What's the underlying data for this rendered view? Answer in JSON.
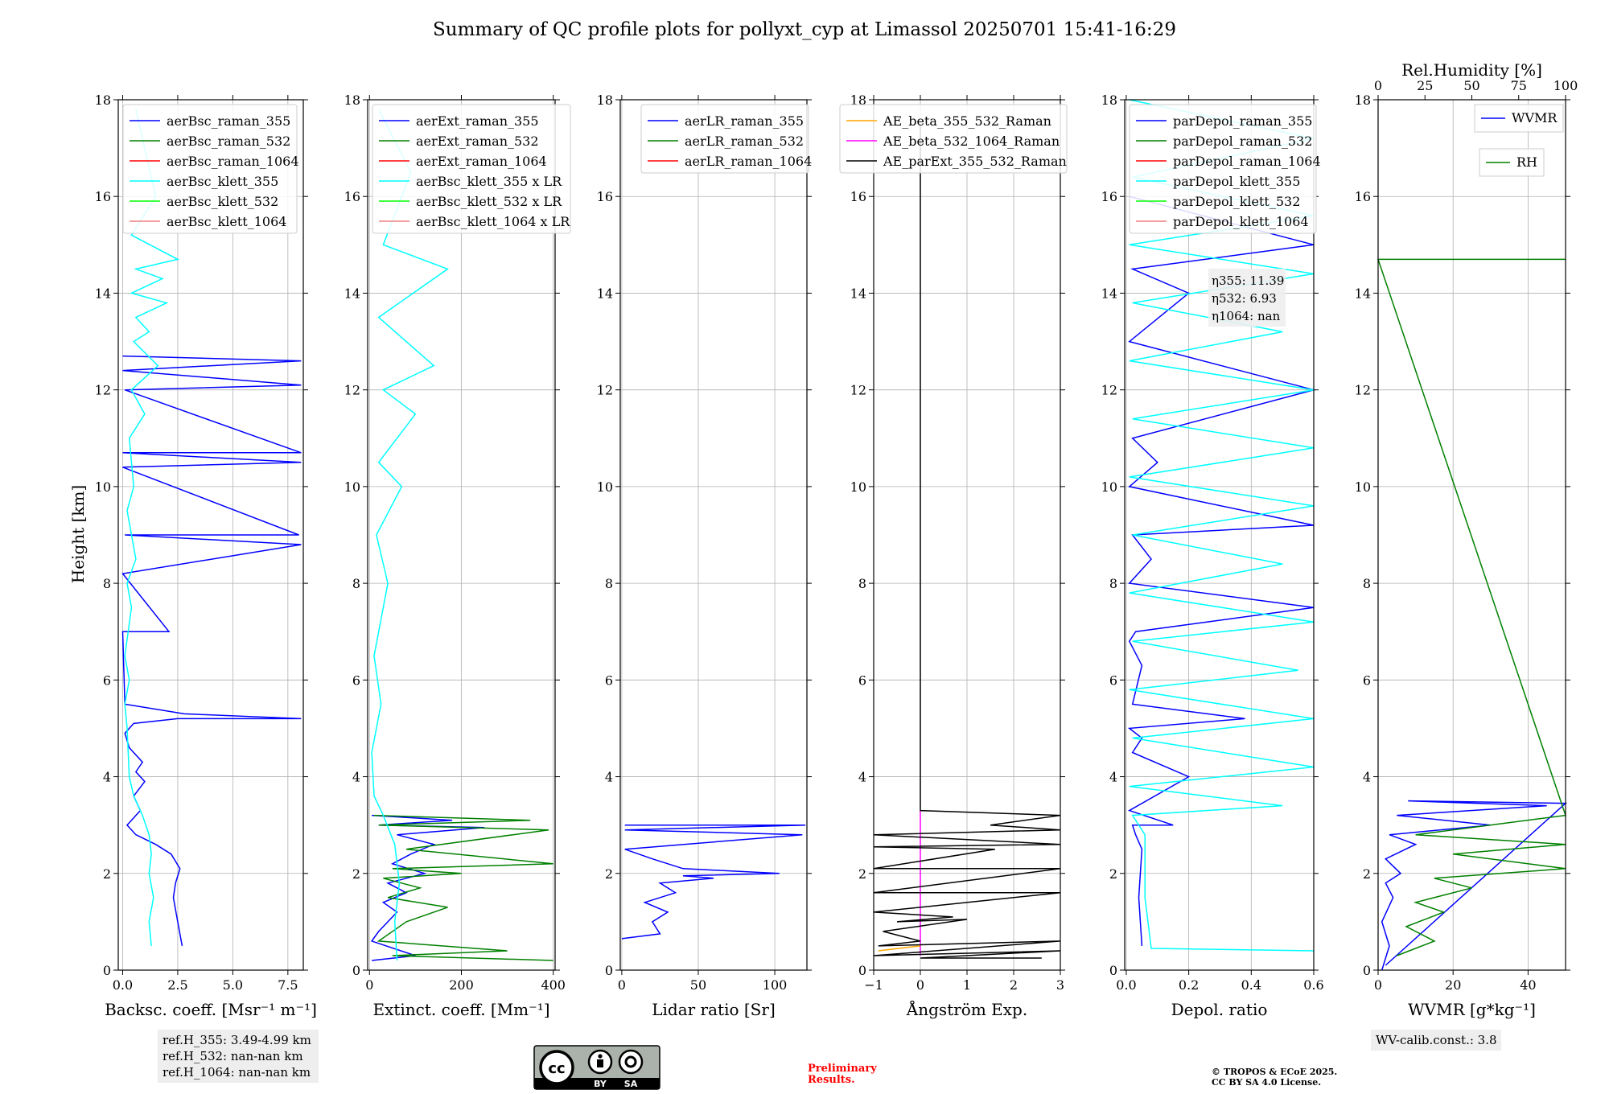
{
  "figure": {
    "title": "Summary of QC profile plots for pollyxt_cyp at Limassol 20250701 15:41-16:29",
    "ylabel": "Height [km]",
    "ref_heights": [
      "ref.H_355: 3.49-4.99 km",
      "ref.H_532: nan-nan km",
      "ref.H_1064: nan-nan km"
    ],
    "wv_calib": "WV-calib.const.: 3.8",
    "preliminary": [
      "Preliminary",
      "Results."
    ],
    "copyright": [
      "© TROPOS & ECoE 2025.",
      "CC BY SA 4.0 License."
    ],
    "license_badge": [
      "BY",
      "SA"
    ],
    "eta_labels": [
      "η355: 11.39",
      "η532: 6.93",
      "η1064: nan"
    ],
    "colors": {
      "raman_355": "#0000ff",
      "raman_532": "#008000",
      "raman_1064": "#ff0000",
      "klett_355": "#00ffff",
      "klett_532": "#00ff00",
      "klett_1064": "#f08080",
      "ae_355_532": "#ffa500",
      "ae_532_1064": "#ff00ff",
      "ae_ext": "#000000"
    }
  },
  "chart_data": [
    {
      "type": "line",
      "xlabel": "Backsc. coeff. [Msr⁻¹ m⁻¹]",
      "xlim": [
        -0.2,
        8.2
      ],
      "ylim": [
        0,
        18
      ],
      "xticks": [
        0.0,
        2.5,
        5.0,
        7.5
      ],
      "xtick_labels": [
        "0.0",
        "2.5",
        "5.0",
        "7.5"
      ],
      "legend": [
        "aerBsc_raman_355",
        "aerBsc_raman_532",
        "aerBsc_raman_1064",
        "aerBsc_klett_355",
        "aerBsc_klett_532",
        "aerBsc_klett_1064"
      ],
      "legend_colors": [
        "#0000ff",
        "#008000",
        "#ff0000",
        "#00ffff",
        "#00ff00",
        "#f08080"
      ],
      "series": [
        {
          "color": "#0000ff",
          "x": [
            2.7,
            2.5,
            2.3,
            2.4,
            2.6,
            2.2,
            1.5,
            0.6,
            0.2,
            0.8,
            0.5,
            1.0,
            0.6,
            0.9,
            0.3,
            0.1,
            0.5,
            2.5,
            8.1,
            2.8,
            0.1,
            0.0,
            2.1,
            0.0,
            8.1,
            0.1,
            8.0,
            0.0,
            8.1,
            0.0,
            8.1,
            0.1,
            8.1,
            0.0,
            8.1,
            0.0
          ],
          "y": [
            0.5,
            1.0,
            1.5,
            1.8,
            2.1,
            2.4,
            2.6,
            2.8,
            3.0,
            3.3,
            3.6,
            3.9,
            4.1,
            4.3,
            4.6,
            4.9,
            5.1,
            5.2,
            5.2,
            5.3,
            5.5,
            7.0,
            7.0,
            8.2,
            8.8,
            9.0,
            9.0,
            10.4,
            10.5,
            10.7,
            10.7,
            12.0,
            12.1,
            12.4,
            12.6,
            12.7
          ]
        },
        {
          "color": "#00ffff",
          "x": [
            1.3,
            1.2,
            1.4,
            1.2,
            1.3,
            1.2,
            0.9,
            0.5,
            0.3,
            0.2,
            0.1,
            0.3,
            0.1,
            0.4,
            0.2,
            0.6,
            0.2,
            0.5,
            0.3,
            1.0,
            0.4,
            1.6,
            0.5,
            1.2,
            0.6,
            2.0,
            0.4,
            1.8,
            0.6,
            2.5,
            0.4,
            1.5,
            0.6
          ],
          "y": [
            0.5,
            1.0,
            1.5,
            2.0,
            2.4,
            2.8,
            3.2,
            3.6,
            4.0,
            5.0,
            5.5,
            6.0,
            6.5,
            7.5,
            8.0,
            8.5,
            9.5,
            10.0,
            11.0,
            11.5,
            12.0,
            12.5,
            13.0,
            13.2,
            13.5,
            13.8,
            14.0,
            14.3,
            14.5,
            14.7,
            15.2,
            16.0,
            17.8
          ]
        }
      ]
    },
    {
      "type": "line",
      "xlabel": "Extinct. coeff. [Mm⁻¹]",
      "xlim": [
        -4,
        404
      ],
      "ylim": [
        0,
        18
      ],
      "xticks": [
        0,
        200,
        400
      ],
      "xtick_labels": [
        "0",
        "200",
        "400"
      ],
      "legend": [
        "aerExt_raman_355",
        "aerExt_raman_532",
        "aerExt_raman_1064",
        "aerBsc_klett_355 x LR",
        "aerBsc_klett_532 x LR",
        "aerBsc_klett_1064 x LR"
      ],
      "legend_colors": [
        "#0000ff",
        "#008000",
        "#ff0000",
        "#00ffff",
        "#00ff00",
        "#f08080"
      ],
      "series": [
        {
          "color": "#0000ff",
          "x": [
            5,
            100,
            5,
            20,
            40,
            60,
            30,
            80,
            40,
            120,
            50,
            90,
            140,
            60,
            250,
            20,
            180,
            5
          ],
          "y": [
            0.2,
            0.3,
            0.6,
            0.8,
            1.0,
            1.2,
            1.4,
            1.6,
            1.8,
            2.0,
            2.2,
            2.4,
            2.6,
            2.8,
            2.95,
            3.0,
            3.1,
            3.2
          ]
        },
        {
          "color": "#008000",
          "x": [
            400,
            50,
            300,
            20,
            80,
            170,
            40,
            110,
            30,
            200,
            50,
            400,
            80,
            390,
            20,
            350,
            10
          ],
          "y": [
            0.2,
            0.3,
            0.4,
            0.6,
            1.0,
            1.3,
            1.5,
            1.7,
            1.9,
            2.0,
            2.1,
            2.2,
            2.5,
            2.9,
            3.0,
            3.1,
            3.2
          ]
        },
        {
          "color": "#00ffff",
          "x": [
            60,
            55,
            65,
            55,
            30,
            10,
            5,
            25,
            10,
            40,
            15,
            70,
            20,
            100,
            30,
            140,
            20,
            170,
            30,
            90,
            20
          ],
          "y": [
            0.2,
            1.0,
            1.8,
            2.6,
            3.2,
            3.6,
            4.5,
            5.5,
            6.5,
            8.0,
            9.0,
            10.0,
            10.5,
            11.5,
            12.0,
            12.5,
            13.5,
            14.5,
            15.0,
            16.5,
            17.8
          ]
        }
      ]
    },
    {
      "type": "line",
      "xlabel": "Lidar ratio [Sr]",
      "xlim": [
        -1,
        121
      ],
      "ylim": [
        0,
        18
      ],
      "xticks": [
        0,
        50,
        100
      ],
      "xtick_labels": [
        "0",
        "50",
        "100"
      ],
      "legend": [
        "aerLR_raman_355",
        "aerLR_raman_532",
        "aerLR_raman_1064"
      ],
      "legend_colors": [
        "#0000ff",
        "#008000",
        "#ff0000"
      ],
      "series": [
        {
          "color": "#0000ff",
          "x": [
            0,
            25,
            20,
            30,
            15,
            35,
            25,
            60,
            40,
            103,
            40,
            20,
            2,
            118,
            2,
            120,
            2
          ],
          "y": [
            0.65,
            0.75,
            1.0,
            1.2,
            1.4,
            1.6,
            1.8,
            1.9,
            1.95,
            2.0,
            2.1,
            2.3,
            2.5,
            2.8,
            2.9,
            3.0,
            3.0
          ]
        }
      ]
    },
    {
      "type": "line",
      "xlabel": "Ångström Exp.",
      "xlim": [
        -1,
        3
      ],
      "ylim": [
        0,
        18
      ],
      "xticks": [
        -1,
        0,
        1,
        2,
        3
      ],
      "xtick_labels": [
        "−1",
        "0",
        "1",
        "2",
        "3"
      ],
      "legend": [
        "AE_beta_355_532_Raman",
        "AE_beta_532_1064_Raman",
        "AE_parExt_355_532_Raman"
      ],
      "legend_colors": [
        "#ffa500",
        "#ff00ff",
        "#000000"
      ],
      "series": [
        {
          "color": "#ff00ff",
          "x": [
            0,
            0
          ],
          "y": [
            0.3,
            3.3
          ]
        },
        {
          "color": "#ffa500",
          "x": [
            -0.9,
            0
          ],
          "y": [
            0.4,
            0.5
          ]
        },
        {
          "color": "#000000",
          "x": [
            0,
            0,
            3,
            1.5,
            3,
            -1,
            3,
            -1,
            1.6,
            -1,
            3,
            -1,
            3,
            -1,
            0.7,
            -0.5,
            1.0,
            -0.8,
            0.0,
            -0.9,
            3,
            -1,
            3,
            0,
            2.6
          ],
          "y": [
            17.5,
            3.3,
            3.2,
            3.0,
            2.9,
            2.8,
            2.6,
            2.55,
            2.5,
            2.1,
            2.1,
            1.6,
            1.6,
            1.2,
            1.1,
            1.0,
            1.05,
            0.8,
            0.6,
            0.5,
            0.6,
            0.3,
            0.4,
            0.25,
            0.25
          ]
        }
      ]
    },
    {
      "type": "line",
      "xlabel": "Depol. ratio",
      "xlim": [
        -0.005,
        0.6
      ],
      "ylim": [
        0,
        18
      ],
      "xticks": [
        0.0,
        0.2,
        0.4,
        0.6
      ],
      "xtick_labels": [
        "0.0",
        "0.2",
        "0.4",
        "0.6"
      ],
      "legend": [
        "parDepol_raman_355",
        "parDepol_raman_532",
        "parDepol_raman_1064",
        "parDepol_klett_355",
        "parDepol_klett_532",
        "parDepol_klett_1064"
      ],
      "legend_colors": [
        "#0000ff",
        "#008000",
        "#ff0000",
        "#00ffff",
        "#00ff00",
        "#f08080"
      ],
      "eta": {
        "eta_355": 11.39,
        "eta_532": 6.93,
        "eta_1064": "nan"
      },
      "series": [
        {
          "color": "#0000ff",
          "x": [
            0.05,
            0.04,
            0.05,
            0.03,
            0.02,
            0.15,
            0.01,
            0.2,
            0.02,
            0.05,
            0.01,
            0.38,
            0.02,
            0.05,
            0.01,
            0.03,
            0.6,
            0.01,
            0.08,
            0.02,
            0.6,
            0.01,
            0.1,
            0.02,
            0.6,
            0.01,
            0.2,
            0.02,
            0.6,
            0.01
          ],
          "y": [
            0.5,
            1.5,
            2.5,
            2.8,
            3.0,
            3.0,
            3.3,
            4.0,
            4.5,
            4.8,
            5.0,
            5.2,
            5.5,
            6.3,
            6.8,
            7.0,
            7.5,
            8.0,
            8.5,
            9.0,
            9.2,
            10.0,
            10.5,
            11.0,
            12.0,
            13.0,
            14.0,
            14.5,
            15.0,
            16.0
          ]
        },
        {
          "color": "#00ffff",
          "x": [
            0.6,
            0.08,
            0.06,
            0.06,
            0.02,
            0.5,
            0.01,
            0.6,
            0.02,
            0.6,
            0.01,
            0.55,
            0.02,
            0.6,
            0.01,
            0.5,
            0.02,
            0.6,
            0.01,
            0.6,
            0.02,
            0.6,
            0.01,
            0.5,
            0.02,
            0.6,
            0.01,
            0.6,
            0.02,
            0.6,
            0.01
          ],
          "y": [
            0.4,
            0.45,
            1.5,
            2.8,
            3.2,
            3.4,
            3.8,
            4.2,
            4.8,
            5.2,
            5.8,
            6.2,
            6.8,
            7.2,
            7.8,
            8.4,
            9.0,
            9.6,
            10.2,
            10.8,
            11.4,
            12.0,
            12.6,
            13.2,
            13.8,
            14.4,
            15.0,
            15.6,
            16.4,
            17.2,
            18.0
          ]
        }
      ]
    },
    {
      "type": "line",
      "xlabel": "WVMR [g*kg⁻¹]",
      "x2label": "Rel.Humidity [%]",
      "xlim": [
        0,
        50
      ],
      "ylim": [
        0,
        18
      ],
      "xticks": [
        0,
        20,
        40
      ],
      "xtick_labels": [
        "0",
        "20",
        "40"
      ],
      "x2lim": [
        0,
        100
      ],
      "x2ticks": [
        0,
        25,
        50,
        75,
        100
      ],
      "x2tick_labels": [
        "0",
        "25",
        "50",
        "75",
        "100"
      ],
      "legend": [
        "WVMR",
        "RH"
      ],
      "legend_colors": [
        "#0000ff",
        "#008000"
      ],
      "series": [
        {
          "color": "#0000ff",
          "x": [
            1,
            3,
            1,
            4,
            2,
            6,
            2,
            10,
            3,
            30,
            5,
            45,
            8,
            50,
            2
          ],
          "y": [
            0.0,
            0.5,
            1.0,
            1.5,
            1.8,
            2.0,
            2.3,
            2.6,
            2.8,
            3.0,
            3.2,
            3.4,
            3.5,
            3.45,
            0.1
          ]
        },
        {
          "color": "#008000",
          "x2": [
            10,
            30,
            15,
            35,
            20,
            50,
            30,
            100,
            40,
            100,
            20,
            100,
            0,
            100
          ],
          "y": [
            0.3,
            0.6,
            0.9,
            1.2,
            1.4,
            1.7,
            1.9,
            2.1,
            2.4,
            2.6,
            2.8,
            3.2,
            14.7,
            14.7
          ]
        }
      ]
    }
  ]
}
